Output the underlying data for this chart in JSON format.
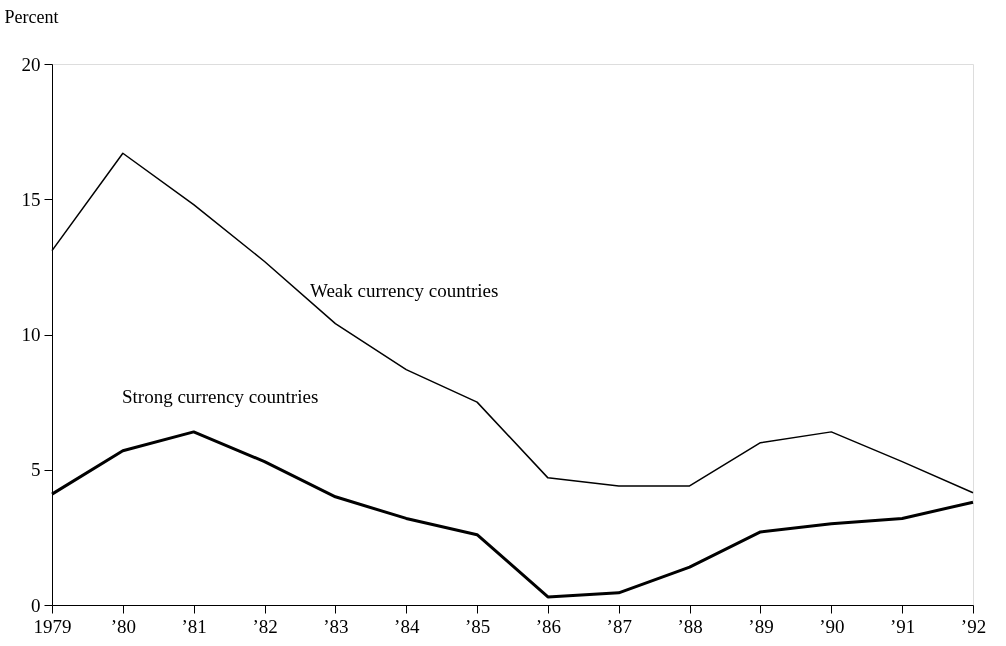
{
  "chart_data": {
    "type": "line",
    "ylabel": "Percent",
    "categories": [
      "1979",
      "’80",
      "’81",
      "’82",
      "’83",
      "’84",
      "’85",
      "’86",
      "’87",
      "’88",
      "’89",
      "’90",
      "’91",
      "’92"
    ],
    "series": [
      {
        "name": "Weak currency countries",
        "color": "#000000",
        "values": [
          13.1,
          16.7,
          14.8,
          12.7,
          10.4,
          8.7,
          7.5,
          4.7,
          4.4,
          4.4,
          6.0,
          6.4,
          5.3,
          4.15
        ]
      },
      {
        "name": "Strong currency countries",
        "color": "#000000",
        "values": [
          4.1,
          5.7,
          6.4,
          5.3,
          4.0,
          3.2,
          2.6,
          0.3,
          0.45,
          1.4,
          2.7,
          3.0,
          3.2,
          3.8
        ]
      }
    ],
    "ylim": [
      0,
      20
    ],
    "yticks": [
      0,
      5,
      10,
      15,
      20
    ],
    "grid": false,
    "legend": false,
    "marker": "none",
    "line_style": "solid"
  }
}
